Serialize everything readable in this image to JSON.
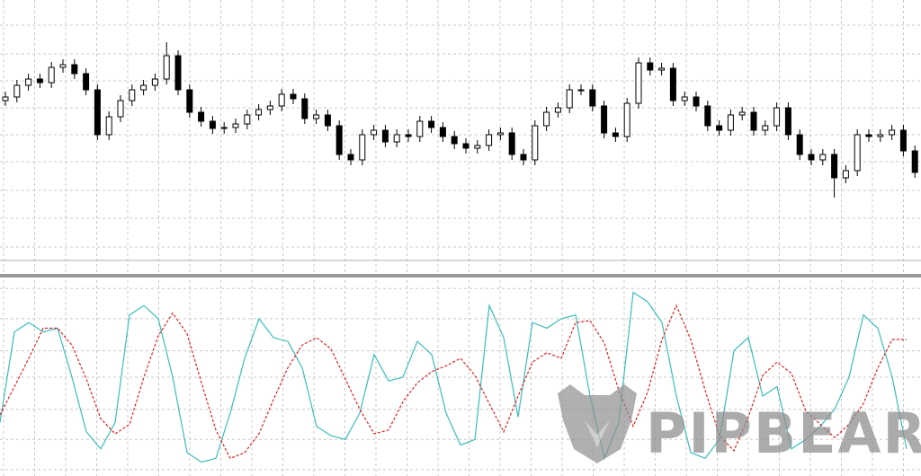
{
  "chart_data": [
    {
      "type": "candlestick",
      "ylim": [
        0,
        290
      ],
      "yticks": [
        15,
        47,
        78,
        110,
        140,
        170,
        200,
        230,
        262
      ],
      "grid": true,
      "up_color": "#ffffff",
      "down_color": "#000000",
      "open": [
        178,
        182,
        195,
        202,
        198,
        215,
        218,
        208,
        190,
        140,
        160,
        178,
        190,
        195,
        202,
        228,
        190,
        165,
        155,
        147,
        148,
        152,
        162,
        168,
        172,
        185,
        180,
        158,
        162,
        150,
        118,
        112,
        140,
        145,
        132,
        140,
        138,
        155,
        148,
        138,
        130,
        125,
        128,
        140,
        142,
        118,
        112,
        150,
        165,
        170,
        190,
        190,
        172,
        142,
        138,
        175,
        220,
        212,
        214,
        178,
        182,
        172,
        150,
        145,
        162,
        165,
        145,
        150,
        170,
        140,
        118,
        112,
        118,
        92,
        100,
        140,
        138,
        140,
        145,
        122
      ],
      "high": [
        188,
        201,
        208,
        208,
        221,
        224,
        224,
        214,
        196,
        166,
        184,
        196,
        201,
        208,
        243,
        234,
        196,
        171,
        161,
        154,
        158,
        168,
        174,
        178,
        191,
        191,
        186,
        168,
        168,
        156,
        124,
        146,
        151,
        151,
        146,
        146,
        161,
        161,
        154,
        144,
        136,
        134,
        146,
        148,
        148,
        124,
        156,
        171,
        176,
        196,
        196,
        196,
        178,
        148,
        181,
        226,
        226,
        220,
        220,
        188,
        188,
        178,
        156,
        168,
        171,
        171,
        156,
        176,
        176,
        146,
        124,
        124,
        124,
        106,
        146,
        146,
        146,
        151,
        151,
        128
      ],
      "low": [
        172,
        176,
        189,
        192,
        192,
        209,
        202,
        184,
        134,
        134,
        154,
        172,
        184,
        189,
        196,
        184,
        159,
        149,
        141,
        141,
        142,
        146,
        156,
        162,
        166,
        174,
        152,
        152,
        144,
        112,
        106,
        106,
        134,
        126,
        126,
        132,
        132,
        142,
        132,
        124,
        119,
        119,
        122,
        134,
        112,
        106,
        106,
        144,
        159,
        164,
        184,
        166,
        136,
        132,
        132,
        169,
        206,
        206,
        172,
        172,
        166,
        144,
        139,
        139,
        156,
        139,
        139,
        144,
        134,
        112,
        106,
        106,
        70,
        86,
        94,
        132,
        132,
        134,
        116,
        92
      ],
      "close": [
        182,
        195,
        202,
        198,
        215,
        218,
        208,
        190,
        140,
        160,
        178,
        190,
        195,
        202,
        228,
        190,
        165,
        155,
        147,
        148,
        152,
        162,
        168,
        172,
        185,
        180,
        158,
        162,
        150,
        118,
        112,
        140,
        145,
        132,
        140,
        138,
        155,
        148,
        138,
        130,
        125,
        128,
        140,
        142,
        118,
        112,
        150,
        165,
        170,
        190,
        190,
        172,
        142,
        138,
        175,
        220,
        212,
        214,
        178,
        182,
        172,
        150,
        145,
        162,
        165,
        145,
        150,
        170,
        140,
        118,
        112,
        118,
        92,
        100,
        140,
        138,
        140,
        145,
        122,
        98
      ]
    },
    {
      "type": "line",
      "ylim": [
        0,
        100
      ],
      "yticks": [
        1,
        17,
        33,
        50,
        64,
        81,
        97
      ],
      "grid": true,
      "watermark": "PIPBEAR",
      "series": [
        {
          "color": "#3cbcbc",
          "dashed": false,
          "values": [
            26,
            74,
            79,
            74,
            76,
            50,
            21,
            12,
            26,
            83,
            88,
            81,
            50,
            10,
            5,
            7,
            31,
            60,
            81,
            71,
            69,
            55,
            24,
            19,
            17,
            31,
            62,
            48,
            50,
            69,
            62,
            31,
            14,
            17,
            88,
            71,
            29,
            79,
            76,
            81,
            83,
            40,
            7,
            26,
            95,
            90,
            79,
            40,
            10,
            7,
            17,
            64,
            71,
            40,
            45,
            12,
            17,
            24,
            33,
            50,
            83,
            76,
            50,
            12
          ]
        },
        {
          "color": "#e02020",
          "dashed": true,
          "values": [
            30,
            45,
            60,
            76,
            76,
            67,
            49,
            28,
            20,
            25,
            50,
            72,
            84,
            73,
            47,
            22,
            7,
            10,
            20,
            38,
            55,
            67,
            71,
            65,
            49,
            33,
            20,
            22,
            37,
            47,
            53,
            56,
            60,
            51,
            36,
            21,
            40,
            58,
            63,
            60,
            79,
            80,
            68,
            43,
            24,
            42,
            70,
            88,
            70,
            43,
            19,
            11,
            29,
            51,
            58,
            52,
            32,
            25,
            18,
            25,
            36,
            55,
            70,
            70
          ]
        }
      ]
    }
  ]
}
